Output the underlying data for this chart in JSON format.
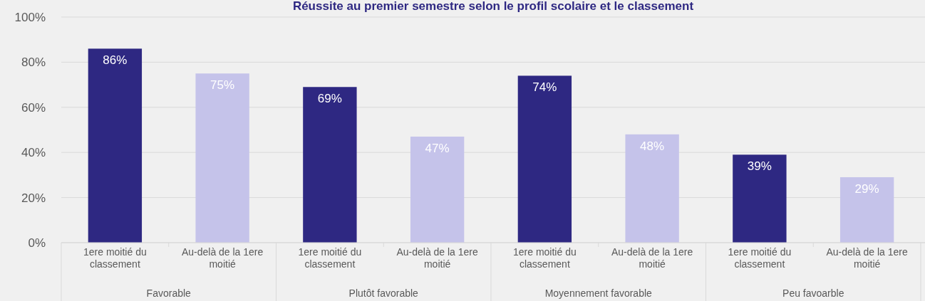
{
  "chart_data": {
    "type": "bar",
    "title": "Réussite au premier semestre selon le profil scolaire et le classement",
    "categories": [
      "1ere moitié du classement",
      "Au-delà de la 1ere moitié",
      "1ere moitié du classement",
      "Au-delà de la 1ere moitié",
      "1ere moitié du classement",
      "Au-delà de la 1ere moitié",
      "1ere moitié du classement",
      "Au-delà de la 1ere moitié"
    ],
    "values": [
      86,
      75,
      69,
      47,
      74,
      48,
      39,
      29
    ],
    "colors": [
      "#2e2882",
      "#c5c3ea",
      "#2e2882",
      "#c5c3ea",
      "#2e2882",
      "#c5c3ea",
      "#2e2882",
      "#c5c3ea"
    ],
    "value_labels": [
      "86%",
      "75%",
      "69%",
      "47%",
      "74%",
      "48%",
      "39%",
      "29%"
    ],
    "annotations": [
      "Favorable",
      "Plutôt favorable",
      "Moyennement favorable",
      "Peu favoarble"
    ],
    "ylim": [
      0,
      100
    ],
    "yticks": [
      {
        "value": 0,
        "label": "0%"
      },
      {
        "value": 20,
        "label": "20%"
      },
      {
        "value": 40,
        "label": "40%"
      },
      {
        "value": 60,
        "label": "60%"
      },
      {
        "value": 80,
        "label": "80%"
      },
      {
        "value": 100,
        "label": "100%"
      }
    ],
    "grid": "y"
  }
}
